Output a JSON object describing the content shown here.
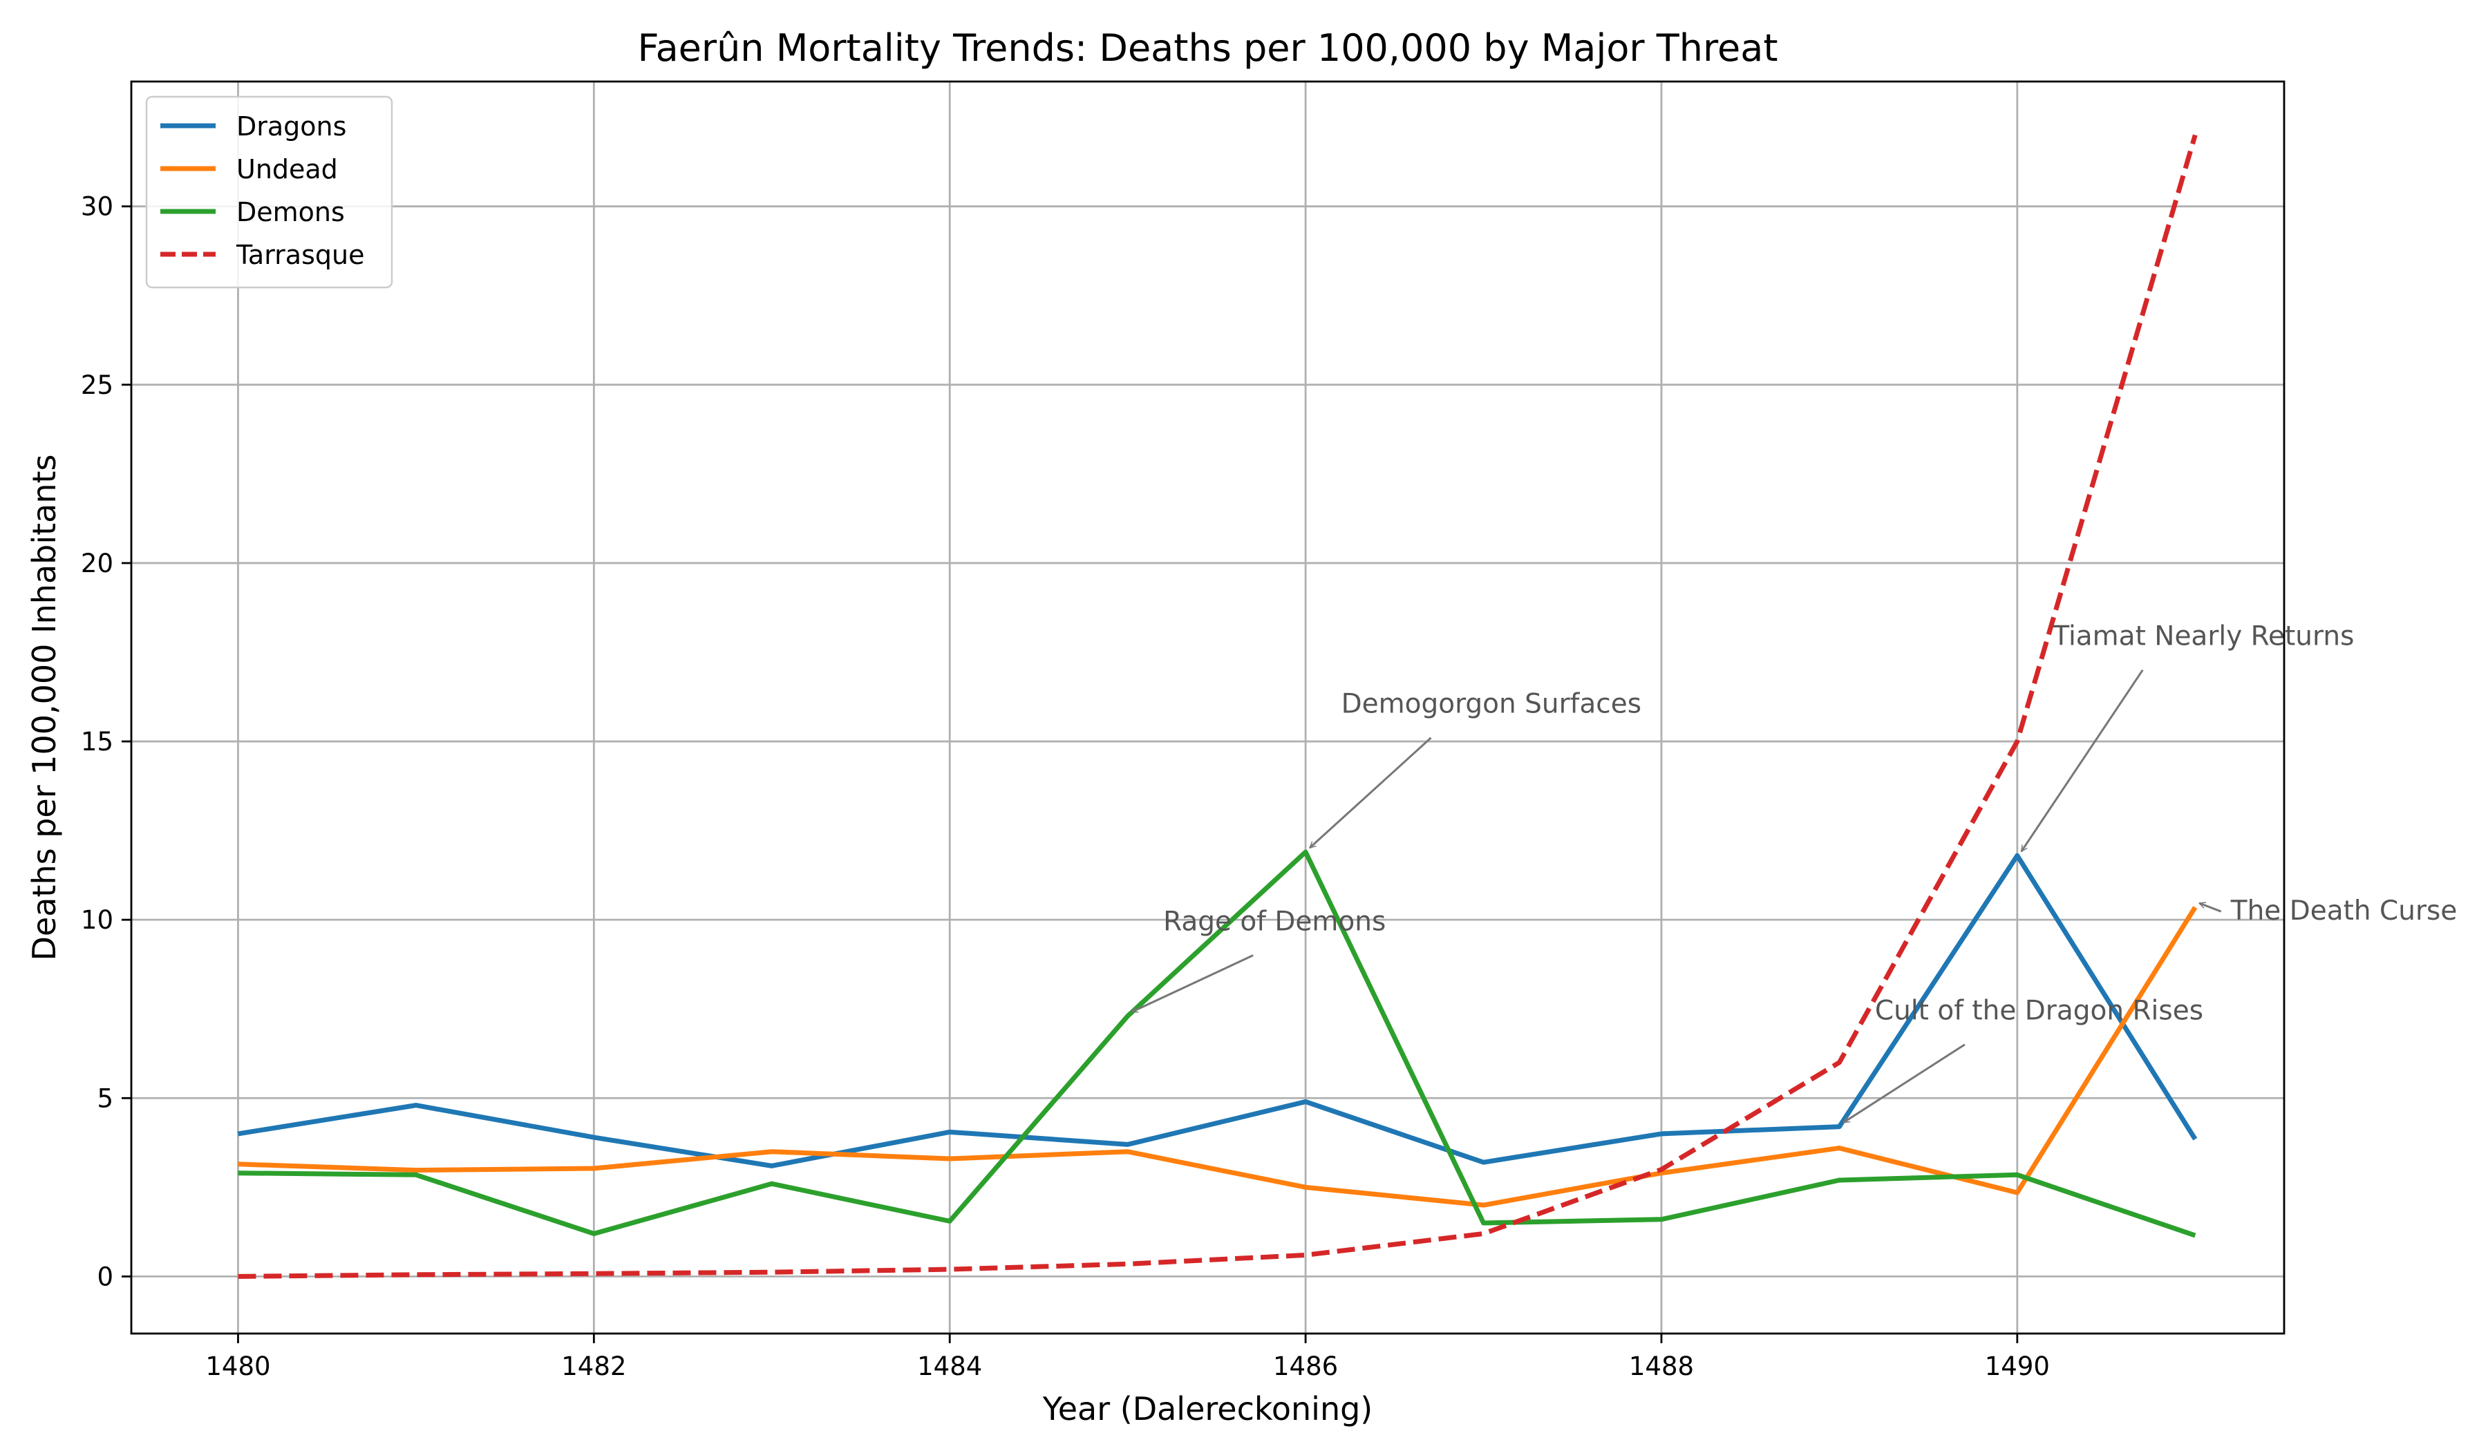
{
  "chart_data": {
    "type": "line",
    "title": "Faerûn Mortality Trends: Deaths per 100,000 by Major Threat",
    "xlabel": "Year (Dalereckoning)",
    "ylabel": "Deaths per 100,000 Inhabitants",
    "xlim": [
      1479.4,
      1491.5
    ],
    "ylim": [
      -1.6,
      33.5
    ],
    "xticks": [
      1480,
      1482,
      1484,
      1486,
      1488,
      1490
    ],
    "yticks": [
      0,
      5,
      10,
      15,
      20,
      25,
      30
    ],
    "grid": true,
    "legend_position": "top-left",
    "x": [
      1480,
      1481,
      1482,
      1483,
      1484,
      1485,
      1486,
      1487,
      1488,
      1489,
      1490,
      1491
    ],
    "series": [
      {
        "name": "Dragons",
        "color": "#1f77b4",
        "dashed": false,
        "values": [
          4.0,
          4.8,
          3.9,
          3.1,
          4.05,
          3.7,
          4.9,
          3.2,
          4.0,
          4.2,
          11.8,
          3.85
        ]
      },
      {
        "name": "Undead",
        "color": "#ff7f0e",
        "dashed": false,
        "values": [
          3.15,
          2.98,
          3.03,
          3.5,
          3.3,
          3.5,
          2.5,
          2.0,
          2.9,
          3.6,
          2.35,
          10.35
        ]
      },
      {
        "name": "Demons",
        "color": "#2ca02c",
        "dashed": false,
        "values": [
          2.9,
          2.85,
          1.2,
          2.6,
          1.55,
          7.3,
          11.9,
          1.5,
          1.6,
          2.7,
          2.85,
          1.15
        ]
      },
      {
        "name": "Tarrasque",
        "color": "#d62728",
        "dashed": true,
        "values": [
          0.0,
          0.05,
          0.08,
          0.12,
          0.2,
          0.35,
          0.6,
          1.2,
          3.0,
          6.0,
          15.0,
          32.0
        ]
      }
    ],
    "annotations": [
      {
        "text": "Demogorgon Surfaces",
        "x": 1486,
        "y": 11.9,
        "text_x": 1486.2,
        "text_y": 15.8
      },
      {
        "text": "Rage of Demons",
        "x": 1485,
        "y": 7.3,
        "text_x": 1485.2,
        "text_y": 9.7
      },
      {
        "text": "Tiamat Nearly Returns",
        "x": 1490,
        "y": 11.8,
        "text_x": 1490.2,
        "text_y": 17.7
      },
      {
        "text": "The Death Curse",
        "x": 1491,
        "y": 10.35,
        "text_x": 1491.2,
        "text_y": 10.0
      },
      {
        "text": "Cult of the Dragon Rises",
        "x": 1489,
        "y": 4.2,
        "text_x": 1489.2,
        "text_y": 7.2
      }
    ]
  }
}
